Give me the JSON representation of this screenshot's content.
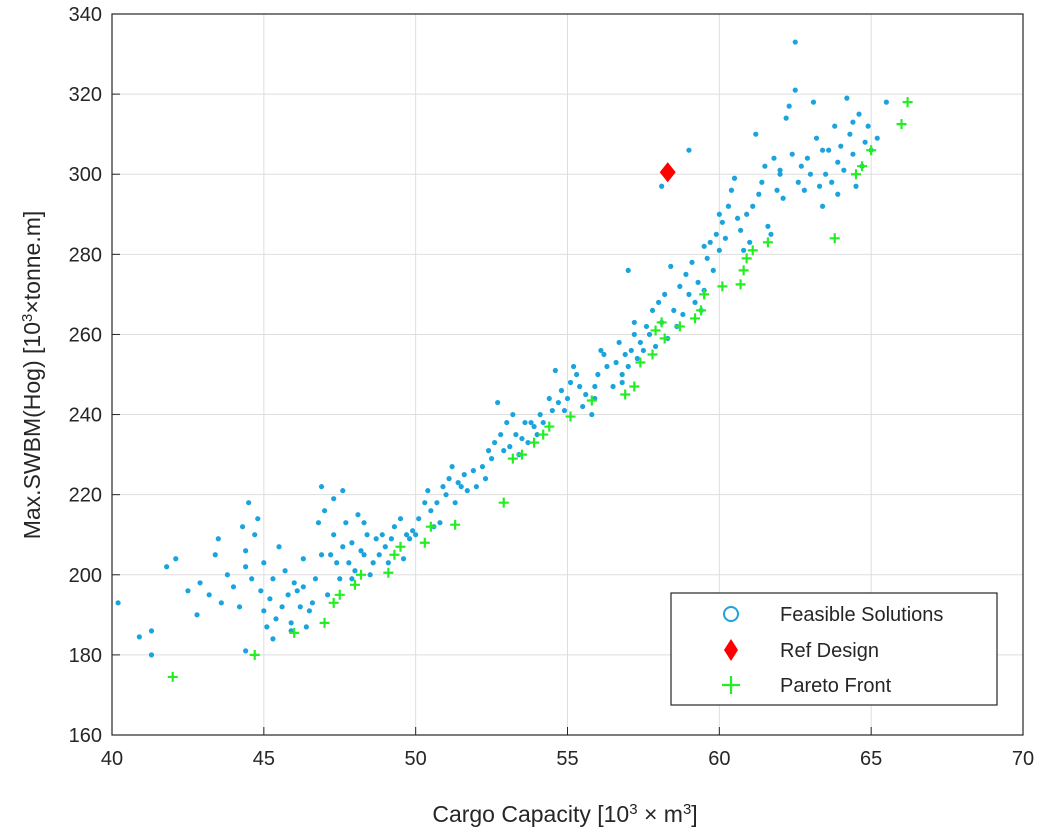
{
  "chart_data": {
    "type": "scatter",
    "title": "",
    "xlabel_prefix": "Cargo Capacity [10",
    "xlabel_sup1": "3",
    "xlabel_mid": " × m",
    "xlabel_sup2": "3",
    "xlabel_suffix": "]",
    "ylabel_prefix": "Max.SWBM(Hog) [10",
    "ylabel_sup": "3",
    "ylabel_suffix": "×tonne.m]",
    "xlim": [
      40,
      70
    ],
    "ylim": [
      160,
      340
    ],
    "xticks": [
      "40",
      "45",
      "50",
      "55",
      "60",
      "65",
      "70"
    ],
    "yticks": [
      "160",
      "180",
      "200",
      "220",
      "240",
      "260",
      "280",
      "300",
      "320",
      "340"
    ],
    "grid": true,
    "legend_position": "bottom-right",
    "colors": {
      "feasible": "#1aa3dc",
      "ref": "#ff0000",
      "pareto": "#22ee22",
      "grid": "#dedede",
      "axis": "#262626"
    },
    "series": [
      {
        "name": "Feasible Solutions",
        "marker": "circle",
        "points": [
          [
            40.2,
            193
          ],
          [
            40.9,
            184.5
          ],
          [
            41.3,
            186
          ],
          [
            41.3,
            180
          ],
          [
            41.8,
            202
          ],
          [
            42.1,
            204
          ],
          [
            42.5,
            196
          ],
          [
            42.9,
            198
          ],
          [
            43.2,
            195
          ],
          [
            43.4,
            205
          ],
          [
            43.5,
            209
          ],
          [
            43.8,
            200
          ],
          [
            44.0,
            197
          ],
          [
            44.2,
            192
          ],
          [
            44.3,
            212
          ],
          [
            44.4,
            206
          ],
          [
            44.5,
            218
          ],
          [
            44.4,
            202
          ],
          [
            44.6,
            199
          ],
          [
            44.7,
            210
          ],
          [
            44.8,
            214
          ],
          [
            44.9,
            196
          ],
          [
            45.0,
            191
          ],
          [
            45.0,
            203
          ],
          [
            45.1,
            187
          ],
          [
            45.2,
            194
          ],
          [
            45.3,
            199
          ],
          [
            45.4,
            189
          ],
          [
            45.5,
            207
          ],
          [
            45.6,
            192
          ],
          [
            45.7,
            201
          ],
          [
            45.8,
            195
          ],
          [
            45.9,
            188
          ],
          [
            45.9,
            186
          ],
          [
            46.0,
            198
          ],
          [
            46.1,
            196
          ],
          [
            46.2,
            192
          ],
          [
            46.3,
            204
          ],
          [
            46.4,
            187
          ],
          [
            46.5,
            191
          ],
          [
            46.6,
            193
          ],
          [
            46.7,
            199
          ],
          [
            46.8,
            213
          ],
          [
            46.9,
            222
          ],
          [
            47.0,
            216
          ],
          [
            47.1,
            195
          ],
          [
            47.2,
            205
          ],
          [
            47.3,
            219
          ],
          [
            47.3,
            210
          ],
          [
            47.4,
            203
          ],
          [
            47.5,
            199
          ],
          [
            47.6,
            207
          ],
          [
            47.6,
            221
          ],
          [
            47.7,
            213
          ],
          [
            47.8,
            203
          ],
          [
            47.9,
            208
          ],
          [
            48.0,
            201
          ],
          [
            48.1,
            215
          ],
          [
            48.2,
            206
          ],
          [
            48.3,
            205
          ],
          [
            48.4,
            210
          ],
          [
            48.5,
            200
          ],
          [
            48.6,
            203
          ],
          [
            48.7,
            209
          ],
          [
            48.8,
            205
          ],
          [
            48.9,
            210
          ],
          [
            49.0,
            207
          ],
          [
            49.1,
            203
          ],
          [
            49.2,
            209
          ],
          [
            49.3,
            212
          ],
          [
            49.5,
            214
          ],
          [
            49.6,
            204
          ],
          [
            49.8,
            209
          ],
          [
            49.9,
            211
          ],
          [
            50.0,
            210
          ],
          [
            50.1,
            214
          ],
          [
            50.3,
            218
          ],
          [
            50.4,
            221
          ],
          [
            50.5,
            216
          ],
          [
            50.7,
            218
          ],
          [
            50.8,
            213
          ],
          [
            50.9,
            222
          ],
          [
            51.0,
            220
          ],
          [
            51.1,
            224
          ],
          [
            51.3,
            218
          ],
          [
            51.4,
            223
          ],
          [
            51.5,
            222
          ],
          [
            51.6,
            225
          ],
          [
            51.7,
            221
          ],
          [
            51.9,
            226
          ],
          [
            52.0,
            222
          ],
          [
            52.2,
            227
          ],
          [
            52.3,
            224
          ],
          [
            52.5,
            229
          ],
          [
            52.6,
            233
          ],
          [
            52.7,
            243
          ],
          [
            52.8,
            235
          ],
          [
            52.9,
            231
          ],
          [
            53.0,
            238
          ],
          [
            53.1,
            232
          ],
          [
            53.2,
            240
          ],
          [
            53.3,
            235
          ],
          [
            53.4,
            230
          ],
          [
            53.5,
            234
          ],
          [
            53.6,
            238
          ],
          [
            53.7,
            233
          ],
          [
            53.9,
            237
          ],
          [
            54.0,
            235
          ],
          [
            54.1,
            240
          ],
          [
            54.2,
            238
          ],
          [
            54.4,
            244
          ],
          [
            54.5,
            241
          ],
          [
            54.6,
            251
          ],
          [
            54.7,
            243
          ],
          [
            54.8,
            246
          ],
          [
            54.9,
            241
          ],
          [
            55.0,
            244
          ],
          [
            55.1,
            248
          ],
          [
            55.2,
            252
          ],
          [
            55.3,
            250
          ],
          [
            55.4,
            247
          ],
          [
            55.5,
            242
          ],
          [
            55.6,
            245
          ],
          [
            55.8,
            240
          ],
          [
            55.9,
            247
          ],
          [
            56.0,
            250
          ],
          [
            56.2,
            255
          ],
          [
            56.3,
            252
          ],
          [
            56.5,
            247
          ],
          [
            56.6,
            253
          ],
          [
            56.7,
            258
          ],
          [
            56.8,
            250
          ],
          [
            56.9,
            255
          ],
          [
            57.0,
            252
          ],
          [
            57.1,
            256
          ],
          [
            57.2,
            260
          ],
          [
            57.3,
            254
          ],
          [
            57.4,
            258
          ],
          [
            57.5,
            256
          ],
          [
            57.6,
            262
          ],
          [
            57.7,
            260
          ],
          [
            57.8,
            266
          ],
          [
            57.9,
            257
          ],
          [
            58.0,
            268
          ],
          [
            58.1,
            263
          ],
          [
            58.2,
            270
          ],
          [
            58.3,
            259
          ],
          [
            58.5,
            266
          ],
          [
            58.6,
            262
          ],
          [
            58.7,
            272
          ],
          [
            58.8,
            265
          ],
          [
            58.9,
            275
          ],
          [
            59.0,
            270
          ],
          [
            59.1,
            278
          ],
          [
            59.2,
            268
          ],
          [
            59.3,
            273
          ],
          [
            59.4,
            266
          ],
          [
            59.5,
            271
          ],
          [
            59.6,
            279
          ],
          [
            59.7,
            283
          ],
          [
            59.8,
            276
          ],
          [
            59.9,
            285
          ],
          [
            60.0,
            281
          ],
          [
            60.1,
            288
          ],
          [
            60.2,
            284
          ],
          [
            60.3,
            292
          ],
          [
            60.4,
            296
          ],
          [
            60.5,
            299
          ],
          [
            60.6,
            289
          ],
          [
            60.7,
            286
          ],
          [
            60.8,
            281
          ],
          [
            60.9,
            290
          ],
          [
            61.0,
            283
          ],
          [
            61.1,
            292
          ],
          [
            61.2,
            310
          ],
          [
            61.3,
            295
          ],
          [
            61.4,
            298
          ],
          [
            61.5,
            302
          ],
          [
            61.6,
            287
          ],
          [
            61.8,
            304
          ],
          [
            61.9,
            296
          ],
          [
            62.0,
            300
          ],
          [
            62.1,
            294
          ],
          [
            62.2,
            314
          ],
          [
            62.3,
            317
          ],
          [
            62.4,
            305
          ],
          [
            62.5,
            321
          ],
          [
            62.5,
            333
          ],
          [
            62.6,
            298
          ],
          [
            62.7,
            302
          ],
          [
            62.8,
            296
          ],
          [
            62.9,
            304
          ],
          [
            63.0,
            300
          ],
          [
            63.1,
            318
          ],
          [
            63.2,
            309
          ],
          [
            63.3,
            297
          ],
          [
            63.4,
            292
          ],
          [
            63.5,
            300
          ],
          [
            63.6,
            306
          ],
          [
            63.7,
            298
          ],
          [
            63.8,
            312
          ],
          [
            63.9,
            303
          ],
          [
            64.0,
            307
          ],
          [
            64.1,
            301
          ],
          [
            64.2,
            319
          ],
          [
            64.3,
            310
          ],
          [
            64.4,
            305
          ],
          [
            64.5,
            297
          ],
          [
            64.6,
            315
          ],
          [
            64.7,
            302
          ],
          [
            64.8,
            308
          ],
          [
            64.9,
            312
          ],
          [
            65.0,
            306
          ],
          [
            65.5,
            318
          ],
          [
            57.0,
            276
          ],
          [
            57.2,
            263
          ],
          [
            58.1,
            297
          ],
          [
            59.0,
            306
          ],
          [
            56.8,
            248
          ],
          [
            55.9,
            244
          ],
          [
            56.1,
            256
          ],
          [
            53.8,
            238
          ],
          [
            52.4,
            231
          ],
          [
            51.2,
            227
          ],
          [
            50.6,
            212
          ],
          [
            49.7,
            210
          ],
          [
            48.3,
            213
          ],
          [
            47.9,
            199
          ],
          [
            46.9,
            205
          ],
          [
            46.3,
            197
          ],
          [
            45.3,
            184
          ],
          [
            44.4,
            181
          ],
          [
            43.6,
            193
          ],
          [
            42.8,
            190
          ],
          [
            58.4,
            277
          ],
          [
            59.5,
            282
          ],
          [
            60.0,
            290
          ],
          [
            61.7,
            285
          ],
          [
            62.0,
            301
          ],
          [
            63.4,
            306
          ],
          [
            64.4,
            313
          ],
          [
            63.9,
            295
          ],
          [
            65.2,
            309
          ]
        ]
      },
      {
        "name": "Ref Design",
        "marker": "diamond",
        "points": [
          [
            58.3,
            300.5
          ]
        ]
      },
      {
        "name": "Pareto Front",
        "marker": "plus",
        "points": [
          [
            42.0,
            174.5
          ],
          [
            44.7,
            180
          ],
          [
            46.0,
            185.5
          ],
          [
            47.0,
            188
          ],
          [
            47.3,
            193
          ],
          [
            47.5,
            195
          ],
          [
            48.0,
            197.5
          ],
          [
            48.2,
            200
          ],
          [
            49.1,
            200.5
          ],
          [
            49.3,
            205
          ],
          [
            49.5,
            207
          ],
          [
            50.3,
            208
          ],
          [
            50.5,
            212
          ],
          [
            51.3,
            212.5
          ],
          [
            52.9,
            218
          ],
          [
            53.2,
            229
          ],
          [
            53.5,
            230
          ],
          [
            53.9,
            233
          ],
          [
            54.2,
            235
          ],
          [
            54.4,
            237
          ],
          [
            55.1,
            239.5
          ],
          [
            55.8,
            243.5
          ],
          [
            56.9,
            245
          ],
          [
            57.2,
            247
          ],
          [
            57.4,
            253
          ],
          [
            57.8,
            255
          ],
          [
            57.9,
            261
          ],
          [
            58.1,
            263
          ],
          [
            58.2,
            259
          ],
          [
            58.7,
            262
          ],
          [
            59.2,
            264
          ],
          [
            59.4,
            266
          ],
          [
            59.5,
            270
          ],
          [
            60.1,
            272
          ],
          [
            60.7,
            272.5
          ],
          [
            60.8,
            276
          ],
          [
            60.9,
            279
          ],
          [
            61.1,
            281
          ],
          [
            61.6,
            283
          ],
          [
            63.8,
            284
          ],
          [
            64.5,
            300
          ],
          [
            64.7,
            302
          ],
          [
            65.0,
            306
          ],
          [
            66.0,
            312.5
          ],
          [
            66.2,
            318
          ]
        ]
      }
    ]
  }
}
